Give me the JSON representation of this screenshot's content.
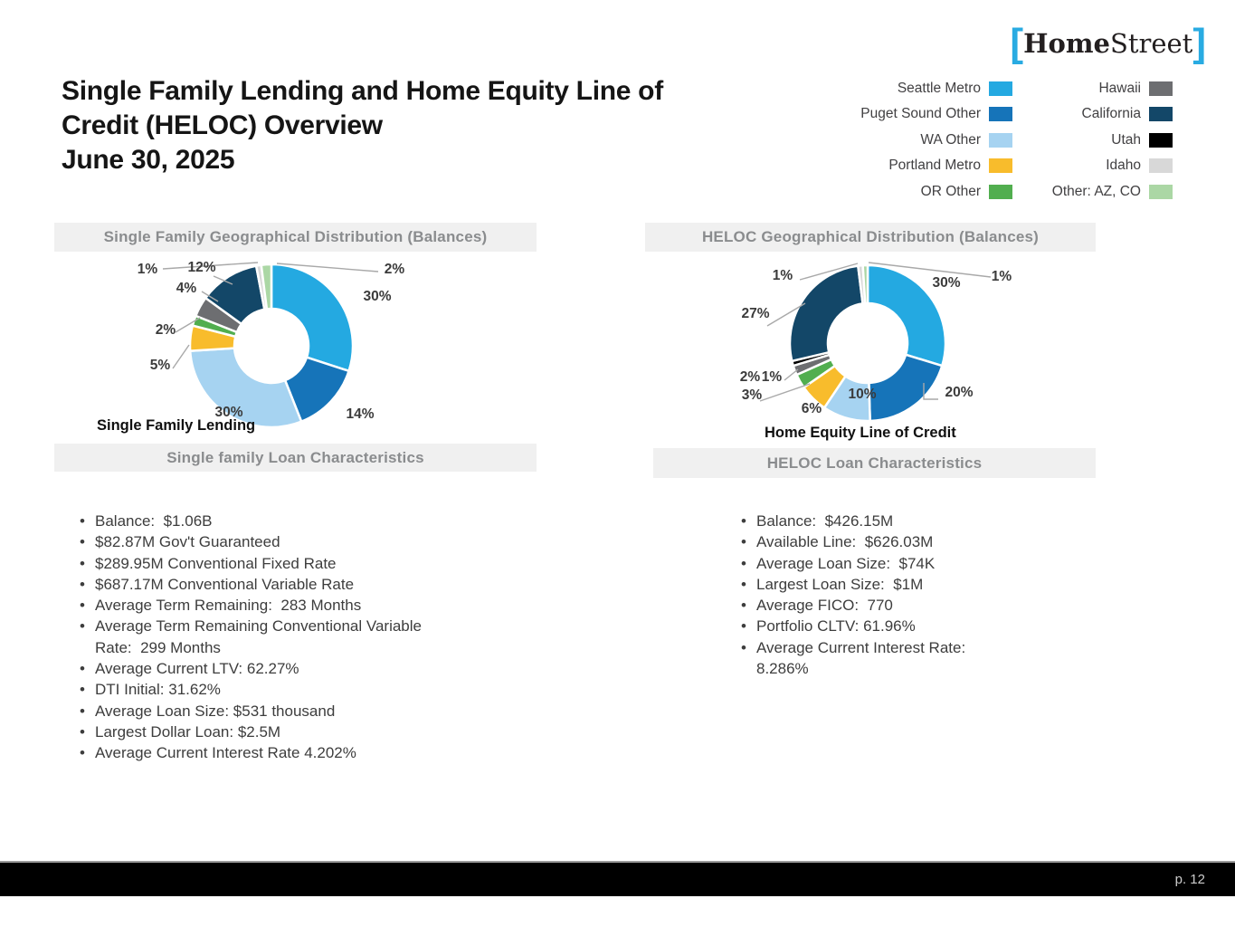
{
  "logo": {
    "bracket_left": "[",
    "home": "Home",
    "street": "Street",
    "bracket_right": "]",
    "accent_color": "#29ABE2"
  },
  "title": {
    "line1": "Single Family Lending and Home Equity Line of",
    "line2": "Credit (HELOC) Overview",
    "line3": "June 30, 2025"
  },
  "legend": {
    "columns": [
      {
        "items": [
          {
            "label": "Seattle Metro",
            "color": "#24A9E1"
          },
          {
            "label": "Puget Sound Other",
            "color": "#1674B9"
          },
          {
            "label": "WA Other",
            "color": "#A6D3F1"
          },
          {
            "label": "Portland Metro",
            "color": "#F8BC2C"
          },
          {
            "label": "OR Other",
            "color": "#51AE4F"
          }
        ]
      },
      {
        "items": [
          {
            "label": "Hawaii",
            "color": "#6D6E71"
          },
          {
            "label": "California",
            "color": "#134768"
          },
          {
            "label": "Utah",
            "color": "#000000"
          },
          {
            "label": "Idaho",
            "color": "#D8D8D8"
          },
          {
            "label": "Other: AZ, CO",
            "color": "#ABD7A5"
          }
        ]
      }
    ]
  },
  "chart_data": [
    {
      "type": "pie",
      "donut": true,
      "title": "Single Family Geographical Distribution (Balances)",
      "caption": "Single Family Lending",
      "unit": "%",
      "legend_position": "top-right-of-page",
      "segments": [
        {
          "label": "Seattle Metro",
          "value": 30,
          "color": "#24A9E1"
        },
        {
          "label": "Puget Sound Other",
          "value": 14,
          "color": "#1674B9"
        },
        {
          "label": "WA Other",
          "value": 30,
          "color": "#A6D3F1"
        },
        {
          "label": "Portland Metro",
          "value": 5,
          "color": "#F8BC2C"
        },
        {
          "label": "OR Other",
          "value": 2,
          "color": "#51AE4F"
        },
        {
          "label": "Hawaii",
          "value": 4,
          "color": "#6D6E71"
        },
        {
          "label": "California",
          "value": 12,
          "color": "#134768"
        },
        {
          "label": "Idaho",
          "value": 1,
          "color": "#D8D8D8"
        },
        {
          "label": "Other: AZ, CO",
          "value": 2,
          "color": "#ABD7A5"
        }
      ]
    },
    {
      "type": "pie",
      "donut": true,
      "title": "HELOC Geographical Distribution (Balances)",
      "caption": "Home Equity Line of Credit",
      "unit": "%",
      "legend_position": "top-right-of-page",
      "segments": [
        {
          "label": "Seattle Metro",
          "value": 30,
          "color": "#24A9E1"
        },
        {
          "label": "Puget Sound Other",
          "value": 20,
          "color": "#1674B9"
        },
        {
          "label": "WA Other",
          "value": 10,
          "color": "#A6D3F1"
        },
        {
          "label": "Portland Metro",
          "value": 6,
          "color": "#F8BC2C"
        },
        {
          "label": "OR Other",
          "value": 3,
          "color": "#51AE4F"
        },
        {
          "label": "Hawaii",
          "value": 2,
          "color": "#6D6E71"
        },
        {
          "label": "Utah",
          "value": 1,
          "color": "#000000"
        },
        {
          "label": "California",
          "value": 27,
          "color": "#134768"
        },
        {
          "label": "Idaho",
          "value": 1,
          "color": "#D8D8D8"
        },
        {
          "label": "Other: AZ, CO",
          "value": 1,
          "color": "#ABD7A5"
        }
      ]
    }
  ],
  "sections": {
    "sf_chars": {
      "header": "Single family Loan Characteristics",
      "bullets": [
        "Balance:  $1.06B",
        "$82.87M Gov't Guaranteed",
        "$289.95M Conventional Fixed Rate",
        "$687.17M Conventional Variable Rate",
        "Average Term Remaining:  283 Months",
        "Average Term Remaining Conventional Variable Rate:  299 Months",
        "Average Current LTV: 62.27%",
        "DTI Initial: 31.62%",
        "Average Loan Size: $531 thousand",
        "Largest Dollar Loan: $2.5M",
        "Average Current Interest Rate 4.202%"
      ]
    },
    "heloc_chars": {
      "header": "HELOC  Loan Characteristics",
      "bullets": [
        "Balance:  $426.15M",
        "Available Line:  $626.03M",
        "Average Loan Size:  $74K",
        "Largest Loan Size:  $1M",
        "Average FICO:  770",
        "Portfolio CLTV: 61.96%",
        "Average Current Interest Rate: 8.286%"
      ]
    }
  },
  "footer": {
    "page_label": "p. 12"
  }
}
